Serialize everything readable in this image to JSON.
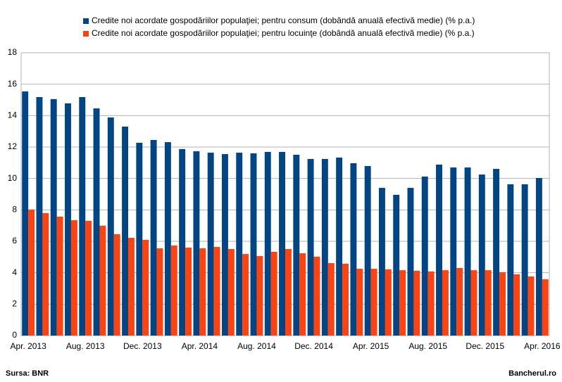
{
  "chart_data": {
    "type": "bar",
    "categories": [
      "Apr. 2013",
      null,
      null,
      null,
      "Aug. 2013",
      null,
      null,
      null,
      "Dec. 2013",
      null,
      null,
      null,
      "Apr. 2014",
      null,
      null,
      null,
      "Aug. 2014",
      null,
      null,
      null,
      "Dec. 2014",
      null,
      null,
      null,
      "Apr. 2015",
      null,
      null,
      null,
      "Aug. 2015",
      null,
      null,
      null,
      "Dec. 2015",
      null,
      null,
      null,
      "Apr. 2016"
    ],
    "series": [
      {
        "name": "Credite noi acordate gospodăriilor populaţiei; pentru consum (dobândă anuală efectivă medie) (% p.a.)",
        "color": "#004586",
        "values": [
          15.54,
          15.18,
          15.05,
          14.78,
          15.18,
          14.46,
          13.88,
          13.3,
          12.27,
          12.45,
          12.31,
          11.87,
          11.73,
          11.64,
          11.55,
          11.64,
          11.6,
          11.69,
          11.69,
          11.51,
          11.24,
          11.24,
          11.33,
          10.97,
          10.79,
          9.4,
          8.96,
          9.4,
          10.12,
          10.88,
          10.7,
          10.7,
          10.25,
          10.61,
          9.63,
          9.63,
          10.03
        ]
      },
      {
        "name": "Credite noi acordate gospodăriilor populaţiei; pentru locuinţe (dobândă anuală efectivă medie) (% p.a.)",
        "color": "#ff420e",
        "values": [
          8.02,
          7.79,
          7.57,
          7.34,
          7.3,
          6.99,
          6.45,
          6.22,
          6.09,
          5.55,
          5.73,
          5.6,
          5.55,
          5.64,
          5.51,
          5.19,
          5.06,
          5.33,
          5.51,
          5.24,
          5.02,
          4.61,
          4.57,
          4.25,
          4.25,
          4.21,
          4.16,
          4.12,
          4.08,
          4.16,
          4.3,
          4.16,
          4.16,
          4.03,
          3.9,
          3.76,
          3.58
        ]
      }
    ],
    "ylim": [
      0,
      18
    ],
    "yticks": [
      0,
      2,
      4,
      6,
      8,
      10,
      12,
      14,
      16,
      18
    ],
    "grid": true,
    "source": "Sursa: BNR",
    "credit": "Bancherul.ro"
  }
}
